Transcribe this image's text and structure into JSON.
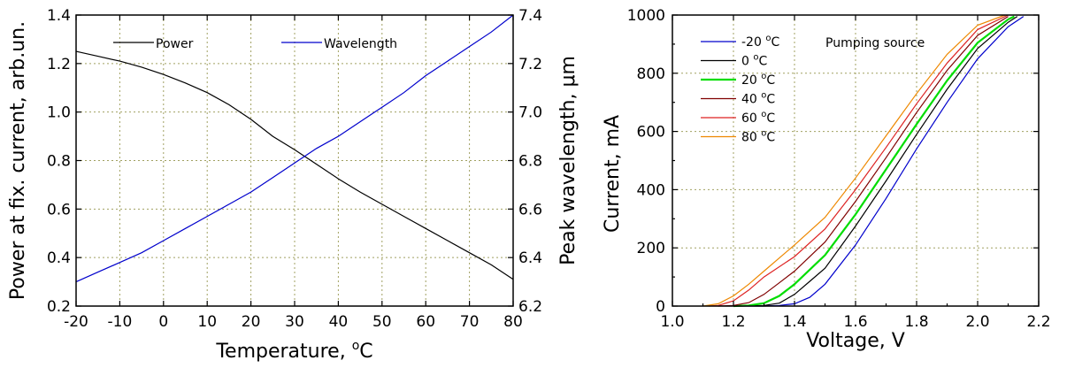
{
  "chart_data": [
    {
      "type": "line",
      "xlabel": "Temperature, ",
      "xlabel_degree": "o",
      "xlabel_unit": "C",
      "ylabel": "Power at fix. current, arb.un.",
      "y2label": "Peak wavelength, ",
      "y2label_unit": "μm",
      "xlim": [
        -20,
        80
      ],
      "ylim": [
        0.2,
        1.4
      ],
      "y2lim": [
        6.2,
        7.4
      ],
      "x_ticks": [
        "-20",
        "-10",
        "0",
        "10",
        "20",
        "30",
        "40",
        "50",
        "60",
        "70",
        "80"
      ],
      "y_ticks": [
        "0.2",
        "0.4",
        "0.6",
        "0.8",
        "1.0",
        "1.2",
        "1.4"
      ],
      "y2_ticks": [
        "6.2",
        "6.4",
        "6.6",
        "6.8",
        "7.0",
        "7.2",
        "7.4"
      ],
      "grid": true,
      "legend_position": "top",
      "series": [
        {
          "name": "Power",
          "axis": "left",
          "color": "#000000",
          "x": [
            -20,
            -15,
            -10,
            -5,
            0,
            5,
            10,
            15,
            20,
            25,
            30,
            35,
            40,
            45,
            50,
            55,
            60,
            65,
            70,
            75,
            80
          ],
          "y": [
            1.25,
            1.23,
            1.21,
            1.185,
            1.155,
            1.12,
            1.08,
            1.03,
            0.97,
            0.9,
            0.845,
            0.785,
            0.725,
            0.67,
            0.62,
            0.57,
            0.52,
            0.47,
            0.42,
            0.37,
            0.31
          ]
        },
        {
          "name": "Wavelength",
          "axis": "right",
          "color": "#0000cc",
          "x": [
            -20,
            -15,
            -10,
            -5,
            0,
            5,
            10,
            15,
            20,
            25,
            30,
            35,
            40,
            45,
            50,
            55,
            60,
            65,
            70,
            75,
            80
          ],
          "y": [
            6.3,
            6.34,
            6.38,
            6.42,
            6.47,
            6.52,
            6.57,
            6.62,
            6.67,
            6.73,
            6.79,
            6.85,
            6.9,
            6.96,
            7.02,
            7.08,
            7.15,
            7.21,
            7.27,
            7.33,
            7.4
          ]
        }
      ]
    },
    {
      "type": "line",
      "xlabel": "Voltage, V",
      "ylabel": "Current, mA",
      "xlim": [
        1.0,
        2.2
      ],
      "ylim": [
        0,
        1000
      ],
      "x_ticks": [
        "1.0",
        "1.2",
        "1.4",
        "1.6",
        "1.8",
        "2.0",
        "2.2"
      ],
      "y_ticks": [
        "0",
        "200",
        "400",
        "600",
        "800",
        "1000"
      ],
      "grid": true,
      "legend_position": "top-left",
      "annotation": "Pumping source",
      "series": [
        {
          "name": "-20 °C",
          "label_num": "-20",
          "color": "#0000cc",
          "x": [
            1.2,
            1.3,
            1.35,
            1.4,
            1.45,
            1.5,
            1.6,
            1.7,
            1.8,
            1.9,
            2.0,
            2.1,
            2.15
          ],
          "y": [
            0,
            0,
            2,
            8,
            30,
            75,
            210,
            370,
            540,
            700,
            850,
            960,
            995
          ]
        },
        {
          "name": "0 °C",
          "label_num": "0",
          "color": "#000000",
          "x": [
            1.2,
            1.3,
            1.35,
            1.4,
            1.45,
            1.5,
            1.6,
            1.7,
            1.8,
            1.9,
            2.0,
            2.1,
            2.13
          ],
          "y": [
            0,
            2,
            10,
            40,
            85,
            130,
            275,
            430,
            590,
            745,
            885,
            975,
            995
          ]
        },
        {
          "name": "20 °C",
          "label_num": "20",
          "color": "#00dd00",
          "x": [
            1.2,
            1.25,
            1.3,
            1.35,
            1.4,
            1.5,
            1.6,
            1.7,
            1.8,
            1.9,
            2.0,
            2.1,
            2.12
          ],
          "y": [
            0,
            2,
            10,
            35,
            75,
            175,
            315,
            470,
            625,
            775,
            905,
            985,
            995
          ]
        },
        {
          "name": "40 °C",
          "label_num": "40",
          "color": "#800000",
          "x": [
            1.15,
            1.2,
            1.25,
            1.3,
            1.35,
            1.4,
            1.5,
            1.6,
            1.7,
            1.8,
            1.9,
            2.0,
            2.1
          ],
          "y": [
            0,
            2,
            12,
            40,
            80,
            120,
            220,
            360,
            510,
            665,
            810,
            930,
            995
          ]
        },
        {
          "name": "60 °C",
          "label_num": "60",
          "color": "#dd2222",
          "x": [
            1.12,
            1.15,
            1.2,
            1.25,
            1.3,
            1.4,
            1.5,
            1.6,
            1.7,
            1.8,
            1.9,
            2.0,
            2.1
          ],
          "y": [
            0,
            2,
            18,
            55,
            100,
            170,
            265,
            400,
            545,
            695,
            835,
            950,
            1000
          ]
        },
        {
          "name": "80 °C",
          "label_num": "80",
          "color": "#ee8800",
          "x": [
            1.1,
            1.15,
            1.2,
            1.25,
            1.3,
            1.4,
            1.5,
            1.6,
            1.7,
            1.8,
            1.9,
            2.0,
            2.09
          ],
          "y": [
            0,
            8,
            35,
            75,
            120,
            210,
            305,
            440,
            585,
            730,
            865,
            965,
            1000
          ]
        }
      ]
    }
  ]
}
